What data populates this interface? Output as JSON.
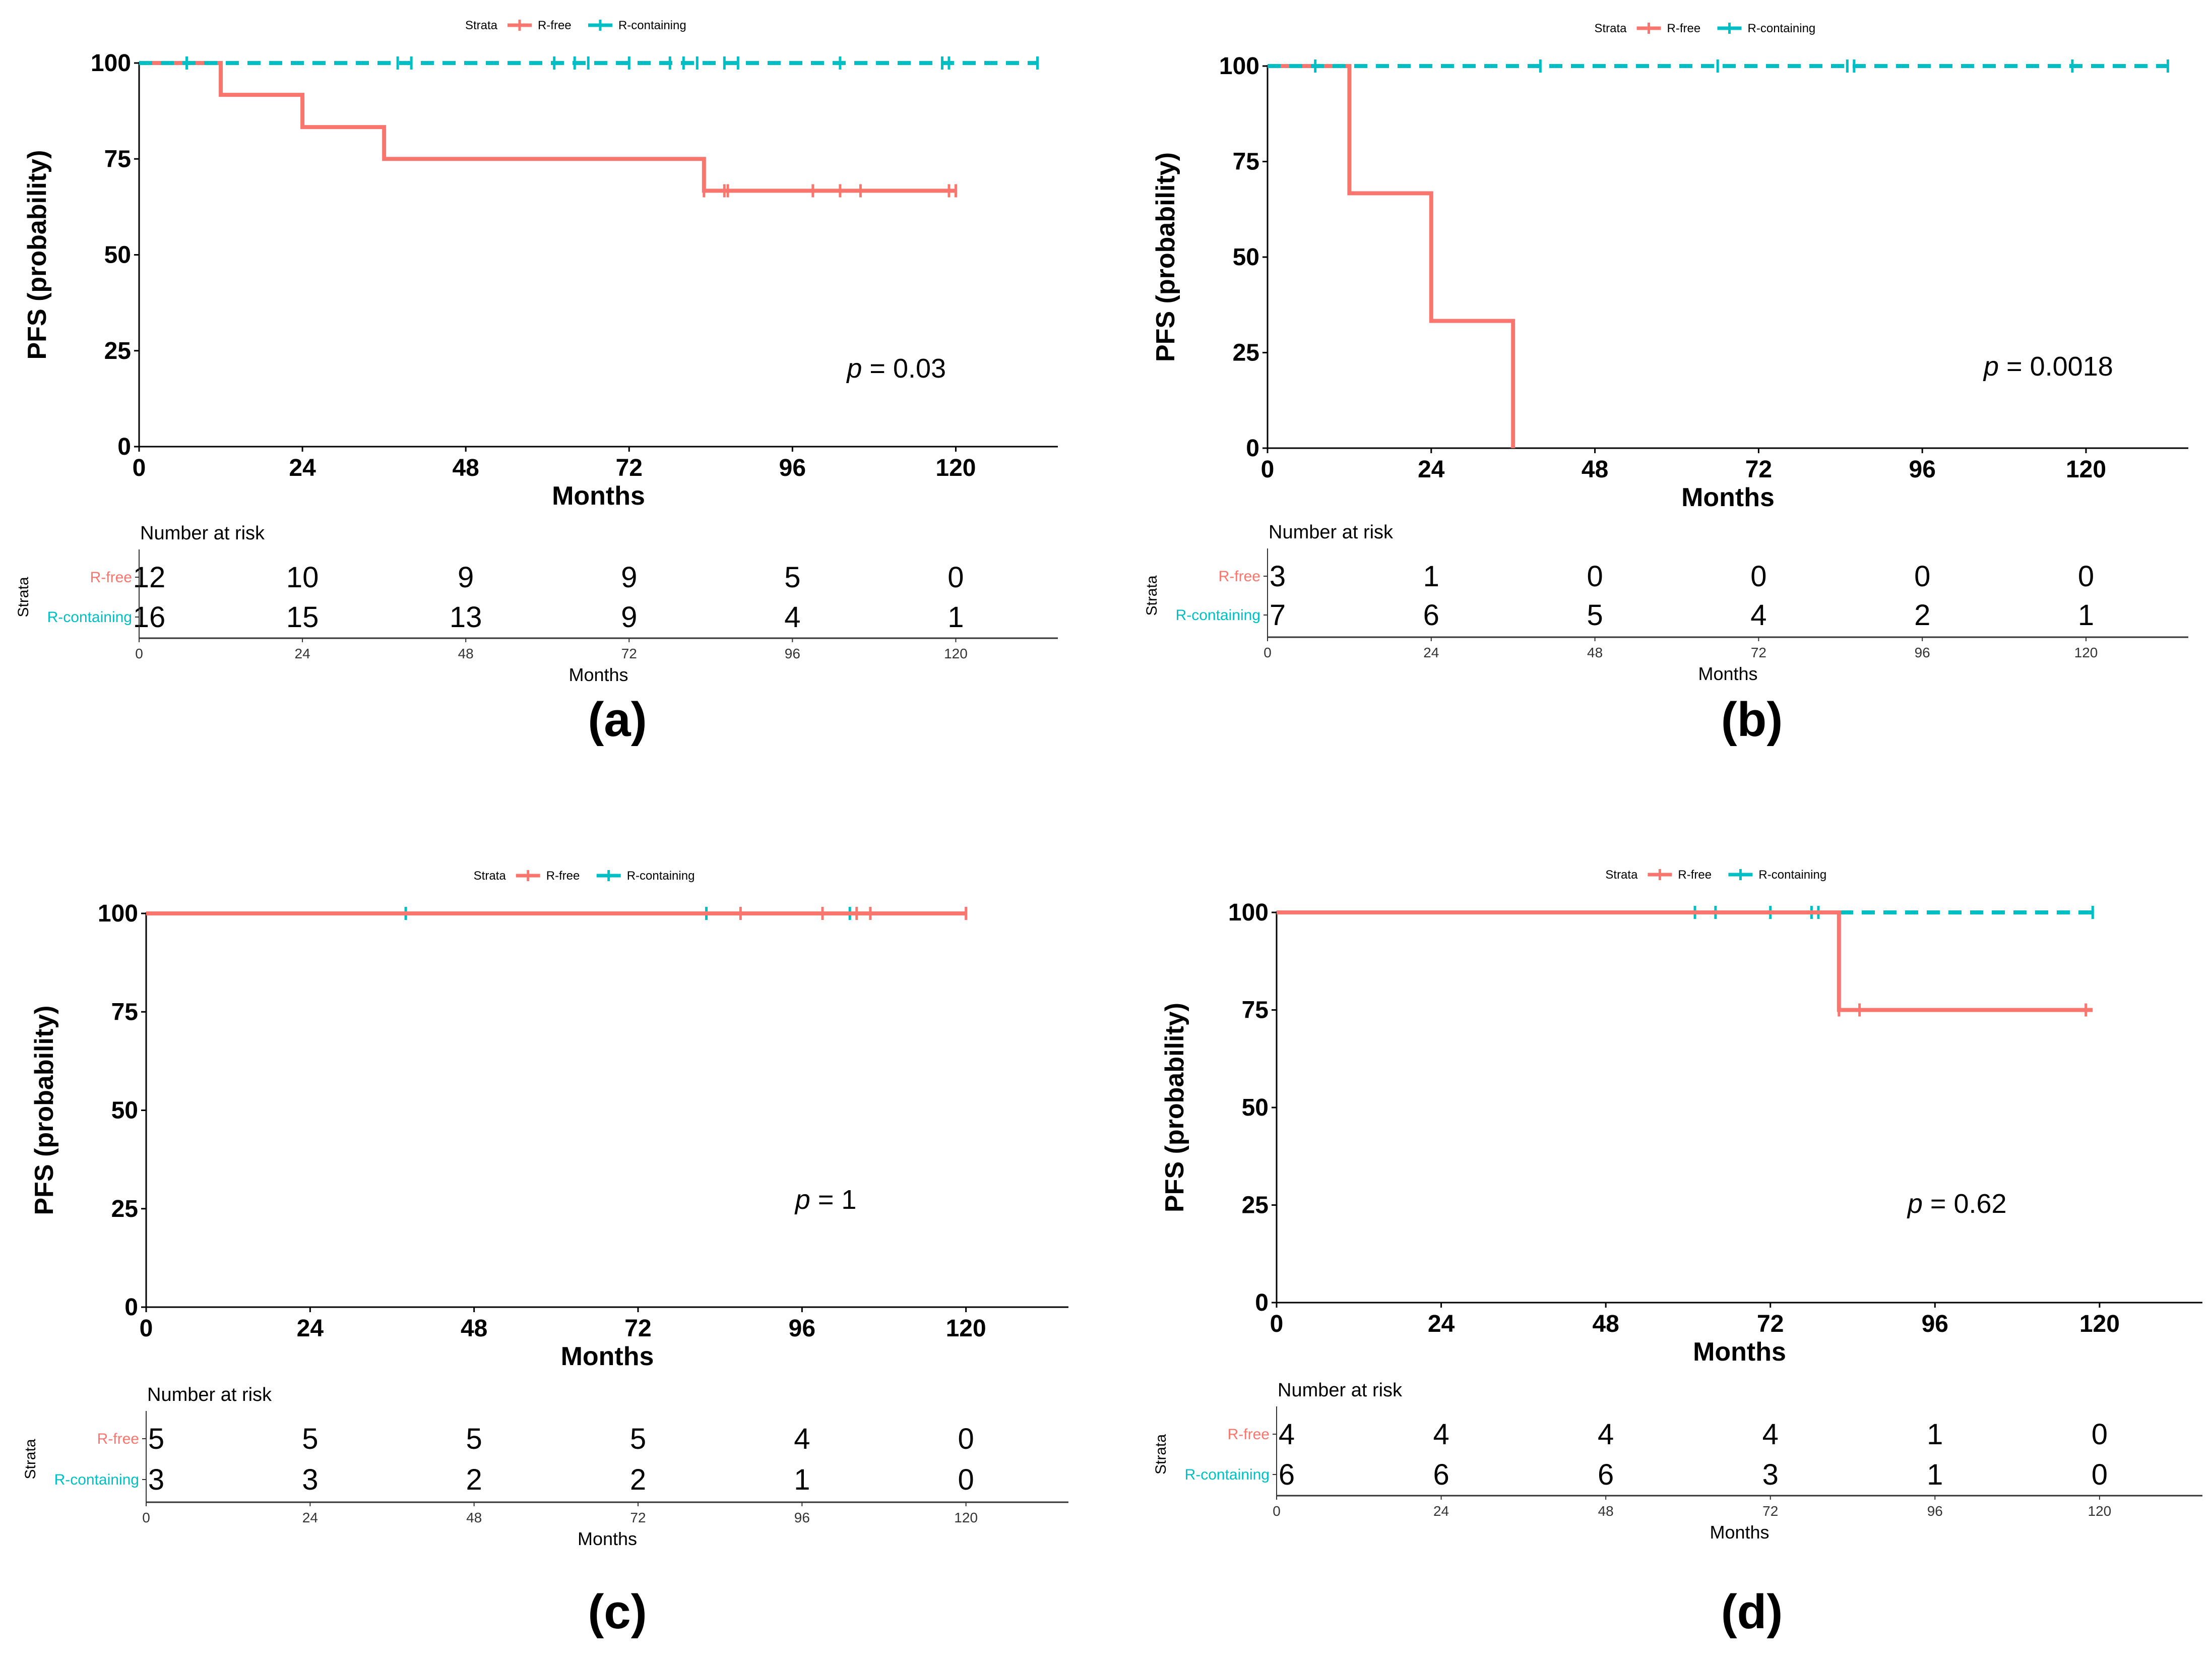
{
  "colors": {
    "r_free": "#F8766D",
    "r_containing": "#00BFC4",
    "axis": "#000000",
    "background": "#ffffff"
  },
  "chart_data": [
    {
      "type": "line",
      "panel_label": "(a)",
      "legend": {
        "title": "Strata",
        "position": "top",
        "entries": [
          "R-free",
          "R-containing"
        ]
      },
      "ylabel": "PFS (probability)",
      "xlabel": "Months",
      "xlim": [
        0,
        135
      ],
      "ylim": [
        0,
        100
      ],
      "xticks": [
        "0",
        "24",
        "48",
        "72",
        "96",
        "120"
      ],
      "yticks": [
        "0",
        "25",
        "50",
        "75",
        "100"
      ],
      "annotation": {
        "prefix": "p",
        "text": " = 0.03",
        "x": 104,
        "y": 18
      },
      "series": [
        {
          "name": "R-free",
          "color": "#F8766D",
          "line": "solid",
          "steps": [
            [
              0,
              100
            ],
            [
              12,
              91.7
            ],
            [
              24,
              83.3
            ],
            [
              36,
              75
            ],
            [
              83,
              66.7
            ],
            [
              120,
              66.7
            ]
          ],
          "censors": [
            [
              83,
              66.7
            ],
            [
              86,
              66.7
            ],
            [
              86.5,
              66.7
            ],
            [
              99,
              66.7
            ],
            [
              103,
              66.7
            ],
            [
              106,
              66.7
            ],
            [
              119,
              66.7
            ],
            [
              120,
              66.7
            ]
          ]
        },
        {
          "name": "R-containing",
          "color": "#00BFC4",
          "line": "dashed",
          "steps": [
            [
              0,
              100
            ],
            [
              132,
              100
            ]
          ],
          "censors": [
            [
              7,
              100
            ],
            [
              38,
              100
            ],
            [
              40,
              100
            ],
            [
              61,
              100
            ],
            [
              64,
              100
            ],
            [
              66,
              100
            ],
            [
              72,
              100
            ],
            [
              78,
              100
            ],
            [
              80,
              100
            ],
            [
              82,
              100
            ],
            [
              86,
              100
            ],
            [
              88,
              100
            ],
            [
              103,
              100
            ],
            [
              118,
              100
            ],
            [
              119,
              100
            ],
            [
              132,
              100
            ]
          ]
        }
      ],
      "risk_table": {
        "title": "Number at risk",
        "strata_label": "Strata",
        "xlabel": "Months",
        "rows": [
          {
            "name": "R-free",
            "values": [
              "12",
              "10",
              "9",
              "9",
              "5",
              "0"
            ]
          },
          {
            "name": "R-containing",
            "values": [
              "16",
              "15",
              "13",
              "9",
              "4",
              "1"
            ]
          }
        ]
      }
    },
    {
      "type": "line",
      "panel_label": "(b)",
      "legend": {
        "title": "Strata",
        "position": "top",
        "entries": [
          "R-free",
          "R-containing"
        ]
      },
      "ylabel": "PFS (probability)",
      "xlabel": "Months",
      "xlim": [
        0,
        135
      ],
      "ylim": [
        0,
        100
      ],
      "xticks": [
        "0",
        "24",
        "48",
        "72",
        "96",
        "120"
      ],
      "yticks": [
        "0",
        "25",
        "50",
        "75",
        "100"
      ],
      "annotation": {
        "prefix": "p",
        "text": " = 0.0018",
        "x": 105,
        "y": 19
      },
      "series": [
        {
          "name": "R-free",
          "color": "#F8766D",
          "line": "solid",
          "steps": [
            [
              0,
              100
            ],
            [
              12,
              66.7
            ],
            [
              24,
              33.3
            ],
            [
              36,
              0
            ]
          ],
          "censors": []
        },
        {
          "name": "R-containing",
          "color": "#00BFC4",
          "line": "dashed",
          "steps": [
            [
              0,
              100
            ],
            [
              132,
              100
            ]
          ],
          "censors": [
            [
              7,
              100
            ],
            [
              40,
              100
            ],
            [
              66,
              100
            ],
            [
              85,
              100
            ],
            [
              86,
              100
            ],
            [
              118,
              100
            ],
            [
              132,
              100
            ]
          ]
        }
      ],
      "risk_table": {
        "title": "Number at risk",
        "strata_label": "Strata",
        "xlabel": "Months",
        "rows": [
          {
            "name": "R-free",
            "values": [
              "3",
              "1",
              "0",
              "0",
              "0",
              "0"
            ]
          },
          {
            "name": "R-containing",
            "values": [
              "7",
              "6",
              "5",
              "4",
              "2",
              "1"
            ]
          }
        ]
      }
    },
    {
      "type": "line",
      "panel_label": "(c)",
      "legend": {
        "title": "Strata",
        "position": "top",
        "entries": [
          "R-free",
          "R-containing"
        ]
      },
      "ylabel": "PFS (probability)",
      "xlabel": "Months",
      "xlim": [
        0,
        135
      ],
      "ylim": [
        0,
        100
      ],
      "xticks": [
        "0",
        "24",
        "48",
        "72",
        "96",
        "120"
      ],
      "yticks": [
        "0",
        "25",
        "50",
        "75",
        "100"
      ],
      "annotation": {
        "prefix": "p",
        "text": " = 1",
        "x": 95,
        "y": 25
      },
      "series": [
        {
          "name": "R-containing",
          "color": "#00BFC4",
          "line": "dashed",
          "steps": [
            [
              0,
              100
            ],
            [
              103,
              100
            ]
          ],
          "censors": [
            [
              38,
              100
            ],
            [
              82,
              100
            ],
            [
              103,
              100
            ]
          ]
        },
        {
          "name": "R-free",
          "color": "#F8766D",
          "line": "solid",
          "steps": [
            [
              0,
              100
            ],
            [
              120,
              100
            ]
          ],
          "censors": [
            [
              87,
              100
            ],
            [
              99,
              100
            ],
            [
              104,
              100
            ],
            [
              106,
              100
            ],
            [
              120,
              100
            ]
          ]
        }
      ],
      "risk_table": {
        "title": "Number at risk",
        "strata_label": "Strata",
        "xlabel": "Months",
        "rows": [
          {
            "name": "R-free",
            "values": [
              "5",
              "5",
              "5",
              "5",
              "4",
              "0"
            ]
          },
          {
            "name": "R-containing",
            "values": [
              "3",
              "3",
              "2",
              "2",
              "1",
              "0"
            ]
          }
        ]
      }
    },
    {
      "type": "line",
      "panel_label": "(d)",
      "legend": {
        "title": "Strata",
        "position": "top",
        "entries": [
          "R-free",
          "R-containing"
        ]
      },
      "ylabel": "PFS (probability)",
      "xlabel": "Months",
      "xlim": [
        0,
        135
      ],
      "ylim": [
        0,
        100
      ],
      "xticks": [
        "0",
        "24",
        "48",
        "72",
        "96",
        "120"
      ],
      "yticks": [
        "0",
        "25",
        "50",
        "75",
        "100"
      ],
      "annotation": {
        "prefix": "p",
        "text": " = 0.62",
        "x": 92,
        "y": 23
      },
      "series": [
        {
          "name": "R-containing",
          "color": "#00BFC4",
          "line": "dashed",
          "steps": [
            [
              0,
              100
            ],
            [
              119,
              100
            ]
          ],
          "censors": [
            [
              61,
              100
            ],
            [
              64,
              100
            ],
            [
              72,
              100
            ],
            [
              78,
              100
            ],
            [
              79,
              100
            ],
            [
              119,
              100
            ]
          ]
        },
        {
          "name": "R-free",
          "color": "#F8766D",
          "line": "solid",
          "steps": [
            [
              0,
              100
            ],
            [
              82,
              75
            ],
            [
              119,
              75
            ]
          ],
          "censors": [
            [
              82,
              75
            ],
            [
              85,
              75
            ],
            [
              118,
              75
            ]
          ]
        }
      ],
      "risk_table": {
        "title": "Number at risk",
        "strata_label": "Strata",
        "xlabel": "Months",
        "rows": [
          {
            "name": "R-free",
            "values": [
              "4",
              "4",
              "4",
              "4",
              "1",
              "0"
            ]
          },
          {
            "name": "R-containing",
            "values": [
              "6",
              "6",
              "6",
              "3",
              "1",
              "0"
            ]
          }
        ]
      }
    }
  ]
}
